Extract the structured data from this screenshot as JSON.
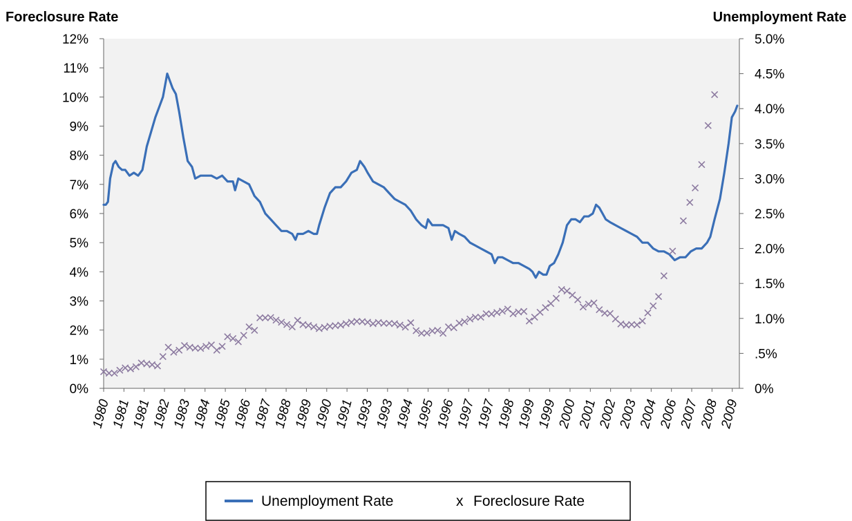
{
  "chart_data": {
    "type": "line",
    "y_left_label": "Foreclosure Rate",
    "y_right_label": "Unemployment Rate",
    "y_left_ticks": [
      "0%",
      "1%",
      "2%",
      "3%",
      "4%",
      "5%",
      "6%",
      "7%",
      "8%",
      "9%",
      "10%",
      "11%",
      "12%"
    ],
    "y_right_ticks": [
      "0%",
      ".5%",
      "1.0%",
      "1.5%",
      "2.0%",
      "2.5%",
      "3.0%",
      "3.5%",
      "4.0%",
      "4.5%",
      "5.0%"
    ],
    "x_tick_labels": [
      "1980",
      "1981",
      "1981",
      "1982",
      "1983",
      "1984",
      "1985",
      "1986",
      "1987",
      "1988",
      "1989",
      "1990",
      "1991",
      "1993",
      "1993",
      "1994",
      "1995",
      "1996",
      "1997",
      "1997",
      "1998",
      "1999",
      "1999",
      "2000",
      "2001",
      "2002",
      "2003",
      "2004",
      "2006",
      "2007",
      "2008",
      "2009"
    ],
    "ylim_left": [
      0,
      12
    ],
    "ylim_right": [
      0,
      5
    ],
    "x_range": [
      1980.0,
      2009.5
    ],
    "grid": false,
    "legend_position": "bottom",
    "colors": {
      "unemployment": "#3a6fb7",
      "foreclosure": "#8c7aa0",
      "plot_bg": "#f2f2f2"
    },
    "series": [
      {
        "name": "Unemployment Rate",
        "axis": "left",
        "style": "line",
        "points": [
          [
            1980.0,
            6.3
          ],
          [
            1980.1,
            6.3
          ],
          [
            1980.2,
            6.4
          ],
          [
            1980.3,
            7.2
          ],
          [
            1980.45,
            7.7
          ],
          [
            1980.55,
            7.8
          ],
          [
            1980.7,
            7.6
          ],
          [
            1980.85,
            7.5
          ],
          [
            1981.0,
            7.5
          ],
          [
            1981.2,
            7.3
          ],
          [
            1981.4,
            7.4
          ],
          [
            1981.6,
            7.3
          ],
          [
            1981.8,
            7.5
          ],
          [
            1982.0,
            8.3
          ],
          [
            1982.2,
            8.8
          ],
          [
            1982.4,
            9.3
          ],
          [
            1982.6,
            9.7
          ],
          [
            1982.75,
            10.0
          ],
          [
            1982.85,
            10.4
          ],
          [
            1982.95,
            10.8
          ],
          [
            1983.05,
            10.6
          ],
          [
            1983.2,
            10.3
          ],
          [
            1983.35,
            10.1
          ],
          [
            1983.5,
            9.5
          ],
          [
            1983.7,
            8.6
          ],
          [
            1983.9,
            7.8
          ],
          [
            1984.1,
            7.6
          ],
          [
            1984.25,
            7.2
          ],
          [
            1984.5,
            7.3
          ],
          [
            1984.75,
            7.3
          ],
          [
            1985.0,
            7.3
          ],
          [
            1985.25,
            7.2
          ],
          [
            1985.5,
            7.3
          ],
          [
            1985.75,
            7.1
          ],
          [
            1986.0,
            7.1
          ],
          [
            1986.1,
            6.8
          ],
          [
            1986.25,
            7.2
          ],
          [
            1986.5,
            7.1
          ],
          [
            1986.75,
            7.0
          ],
          [
            1987.0,
            6.6
          ],
          [
            1987.25,
            6.4
          ],
          [
            1987.5,
            6.0
          ],
          [
            1987.75,
            5.8
          ],
          [
            1988.0,
            5.6
          ],
          [
            1988.25,
            5.4
          ],
          [
            1988.5,
            5.4
          ],
          [
            1988.75,
            5.3
          ],
          [
            1988.9,
            5.1
          ],
          [
            1989.0,
            5.3
          ],
          [
            1989.25,
            5.3
          ],
          [
            1989.5,
            5.4
          ],
          [
            1989.75,
            5.3
          ],
          [
            1989.9,
            5.3
          ],
          [
            1990.0,
            5.6
          ],
          [
            1990.25,
            6.2
          ],
          [
            1990.5,
            6.7
          ],
          [
            1990.75,
            6.9
          ],
          [
            1991.0,
            6.9
          ],
          [
            1991.25,
            7.1
          ],
          [
            1991.5,
            7.4
          ],
          [
            1991.75,
            7.5
          ],
          [
            1991.9,
            7.8
          ],
          [
            1992.1,
            7.6
          ],
          [
            1992.25,
            7.4
          ],
          [
            1992.5,
            7.1
          ],
          [
            1992.75,
            7.0
          ],
          [
            1993.0,
            6.9
          ],
          [
            1993.25,
            6.7
          ],
          [
            1993.5,
            6.5
          ],
          [
            1993.75,
            6.4
          ],
          [
            1994.0,
            6.3
          ],
          [
            1994.25,
            6.1
          ],
          [
            1994.5,
            5.8
          ],
          [
            1994.75,
            5.6
          ],
          [
            1994.95,
            5.5
          ],
          [
            1995.05,
            5.8
          ],
          [
            1995.25,
            5.6
          ],
          [
            1995.5,
            5.6
          ],
          [
            1995.75,
            5.6
          ],
          [
            1996.0,
            5.5
          ],
          [
            1996.15,
            5.1
          ],
          [
            1996.3,
            5.4
          ],
          [
            1996.5,
            5.3
          ],
          [
            1996.75,
            5.2
          ],
          [
            1997.0,
            5.0
          ],
          [
            1997.25,
            4.9
          ],
          [
            1997.5,
            4.8
          ],
          [
            1997.75,
            4.7
          ],
          [
            1998.0,
            4.6
          ],
          [
            1998.15,
            4.3
          ],
          [
            1998.3,
            4.5
          ],
          [
            1998.5,
            4.5
          ],
          [
            1998.75,
            4.4
          ],
          [
            1999.0,
            4.3
          ],
          [
            1999.25,
            4.3
          ],
          [
            1999.5,
            4.2
          ],
          [
            1999.75,
            4.1
          ],
          [
            1999.9,
            4.0
          ],
          [
            2000.05,
            3.8
          ],
          [
            2000.2,
            4.0
          ],
          [
            2000.4,
            3.9
          ],
          [
            2000.55,
            3.9
          ],
          [
            2000.7,
            4.2
          ],
          [
            2000.9,
            4.3
          ],
          [
            2001.1,
            4.6
          ],
          [
            2001.3,
            5.0
          ],
          [
            2001.5,
            5.6
          ],
          [
            2001.7,
            5.8
          ],
          [
            2001.9,
            5.8
          ],
          [
            2002.1,
            5.7
          ],
          [
            2002.3,
            5.9
          ],
          [
            2002.5,
            5.9
          ],
          [
            2002.7,
            6.0
          ],
          [
            2002.85,
            6.3
          ],
          [
            2003.0,
            6.2
          ],
          [
            2003.15,
            6.0
          ],
          [
            2003.3,
            5.8
          ],
          [
            2003.5,
            5.7
          ],
          [
            2003.75,
            5.6
          ],
          [
            2004.0,
            5.5
          ],
          [
            2004.25,
            5.4
          ],
          [
            2004.5,
            5.3
          ],
          [
            2004.75,
            5.2
          ],
          [
            2005.0,
            5.0
          ],
          [
            2005.25,
            5.0
          ],
          [
            2005.5,
            4.8
          ],
          [
            2005.75,
            4.7
          ],
          [
            2006.0,
            4.7
          ],
          [
            2006.25,
            4.6
          ],
          [
            2006.5,
            4.4
          ],
          [
            2006.75,
            4.5
          ],
          [
            2007.0,
            4.5
          ],
          [
            2007.25,
            4.7
          ],
          [
            2007.5,
            4.8
          ],
          [
            2007.75,
            4.8
          ],
          [
            2008.0,
            5.0
          ],
          [
            2008.15,
            5.2
          ],
          [
            2008.35,
            5.8
          ],
          [
            2008.6,
            6.5
          ],
          [
            2008.8,
            7.4
          ],
          [
            2009.0,
            8.4
          ],
          [
            2009.15,
            9.3
          ],
          [
            2009.3,
            9.5
          ],
          [
            2009.4,
            9.7
          ]
        ]
      },
      {
        "name": "Foreclosure Rate",
        "axis": "left",
        "style": "markers",
        "marker": "x",
        "points": [
          [
            1980.0,
            0.57
          ],
          [
            1980.25,
            0.52
          ],
          [
            1980.5,
            0.52
          ],
          [
            1980.75,
            0.62
          ],
          [
            1981.0,
            0.7
          ],
          [
            1981.25,
            0.67
          ],
          [
            1981.5,
            0.74
          ],
          [
            1981.75,
            0.87
          ],
          [
            1982.0,
            0.84
          ],
          [
            1982.25,
            0.81
          ],
          [
            1982.5,
            0.77
          ],
          [
            1982.75,
            1.09
          ],
          [
            1983.0,
            1.41
          ],
          [
            1983.25,
            1.24
          ],
          [
            1983.5,
            1.31
          ],
          [
            1983.75,
            1.47
          ],
          [
            1984.0,
            1.41
          ],
          [
            1984.25,
            1.38
          ],
          [
            1984.5,
            1.37
          ],
          [
            1984.75,
            1.44
          ],
          [
            1985.0,
            1.49
          ],
          [
            1985.25,
            1.31
          ],
          [
            1985.5,
            1.44
          ],
          [
            1985.75,
            1.77
          ],
          [
            1986.0,
            1.71
          ],
          [
            1986.25,
            1.6
          ],
          [
            1986.5,
            1.82
          ],
          [
            1986.75,
            2.11
          ],
          [
            1987.0,
            1.99
          ],
          [
            1987.25,
            2.42
          ],
          [
            1987.5,
            2.42
          ],
          [
            1987.75,
            2.43
          ],
          [
            1988.0,
            2.34
          ],
          [
            1988.25,
            2.27
          ],
          [
            1988.5,
            2.19
          ],
          [
            1988.75,
            2.11
          ],
          [
            1989.0,
            2.33
          ],
          [
            1989.25,
            2.19
          ],
          [
            1989.5,
            2.16
          ],
          [
            1989.75,
            2.11
          ],
          [
            1990.0,
            2.05
          ],
          [
            1990.25,
            2.09
          ],
          [
            1990.5,
            2.13
          ],
          [
            1990.75,
            2.15
          ],
          [
            1991.0,
            2.17
          ],
          [
            1991.25,
            2.22
          ],
          [
            1991.5,
            2.27
          ],
          [
            1991.75,
            2.3
          ],
          [
            1992.0,
            2.29
          ],
          [
            1992.25,
            2.27
          ],
          [
            1992.5,
            2.22
          ],
          [
            1992.75,
            2.26
          ],
          [
            1993.0,
            2.23
          ],
          [
            1993.25,
            2.23
          ],
          [
            1993.5,
            2.22
          ],
          [
            1993.75,
            2.17
          ],
          [
            1994.0,
            2.1
          ],
          [
            1994.25,
            2.25
          ],
          [
            1994.5,
            1.98
          ],
          [
            1994.75,
            1.89
          ],
          [
            1995.0,
            1.9
          ],
          [
            1995.25,
            1.97
          ],
          [
            1995.5,
            1.99
          ],
          [
            1995.75,
            1.89
          ],
          [
            1996.0,
            2.11
          ],
          [
            1996.25,
            2.08
          ],
          [
            1996.5,
            2.24
          ],
          [
            1996.75,
            2.29
          ],
          [
            1997.0,
            2.38
          ],
          [
            1997.25,
            2.44
          ],
          [
            1997.5,
            2.44
          ],
          [
            1997.75,
            2.56
          ],
          [
            1998.0,
            2.55
          ],
          [
            1998.25,
            2.6
          ],
          [
            1998.5,
            2.65
          ],
          [
            1998.75,
            2.72
          ],
          [
            1999.0,
            2.56
          ],
          [
            1999.25,
            2.62
          ],
          [
            1999.5,
            2.64
          ],
          [
            1999.75,
            2.31
          ],
          [
            2000.0,
            2.44
          ],
          [
            2000.25,
            2.61
          ],
          [
            2000.5,
            2.77
          ],
          [
            2000.75,
            2.91
          ],
          [
            2001.0,
            3.09
          ],
          [
            2001.25,
            3.39
          ],
          [
            2001.5,
            3.34
          ],
          [
            2001.75,
            3.2
          ],
          [
            2002.0,
            3.04
          ],
          [
            2002.25,
            2.79
          ],
          [
            2002.5,
            2.89
          ],
          [
            2002.75,
            2.93
          ],
          [
            2003.0,
            2.7
          ],
          [
            2003.25,
            2.58
          ],
          [
            2003.5,
            2.57
          ],
          [
            2003.75,
            2.38
          ],
          [
            2004.0,
            2.21
          ],
          [
            2004.25,
            2.17
          ],
          [
            2004.5,
            2.19
          ],
          [
            2004.75,
            2.18
          ],
          [
            2005.0,
            2.31
          ],
          [
            2005.25,
            2.59
          ],
          [
            2005.5,
            2.83
          ],
          [
            2005.75,
            3.15
          ],
          [
            2006.0,
            3.86
          ],
          [
            2006.4,
            4.71
          ],
          [
            2006.9,
            5.75
          ],
          [
            2007.2,
            6.38
          ],
          [
            2007.45,
            6.88
          ],
          [
            2007.75,
            7.68
          ],
          [
            2008.05,
            9.02
          ],
          [
            2008.35,
            10.08
          ]
        ]
      }
    ]
  },
  "legend": {
    "unemployment_label": "Unemployment Rate",
    "foreclosure_label": "Foreclosure Rate",
    "marker_glyph": "x"
  }
}
